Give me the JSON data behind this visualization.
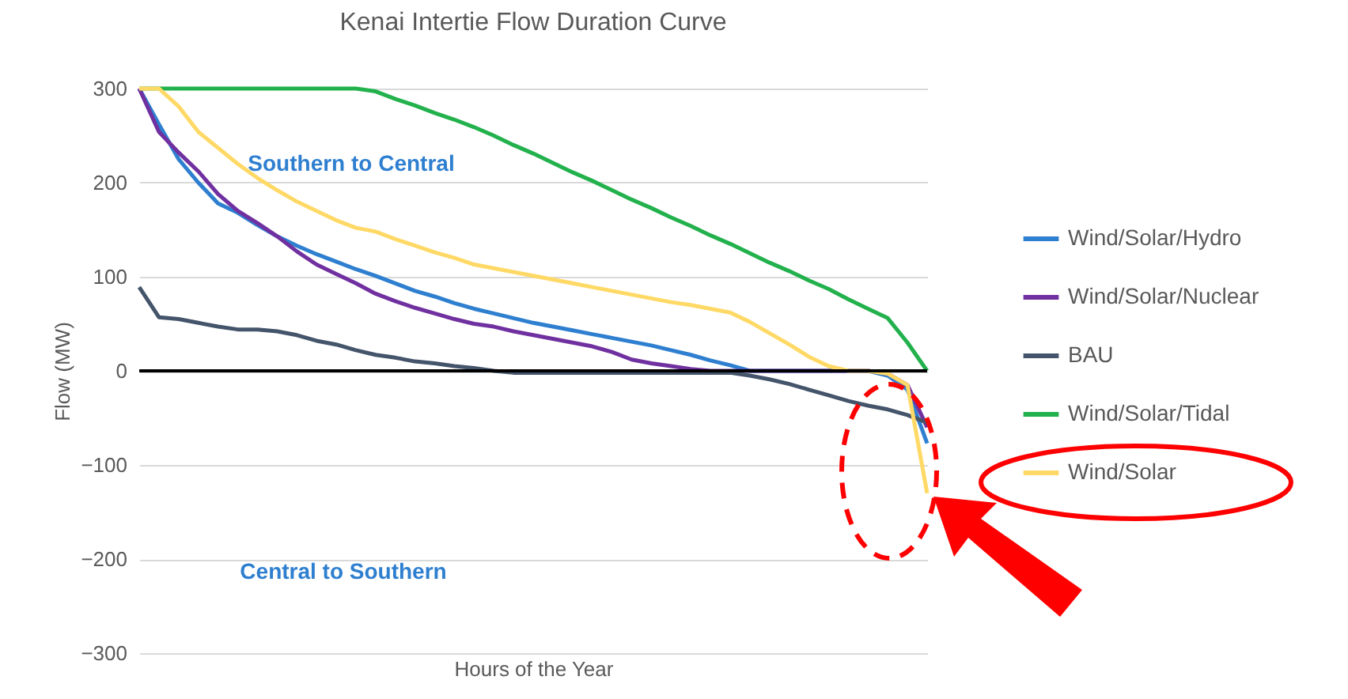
{
  "chart_data": {
    "type": "line",
    "title": "Kenai Intertie Flow Duration Curve",
    "xlabel": "Hours of the Year",
    "ylabel": "Flow (MW)",
    "categories": [
      null,
      null,
      null,
      null,
      null,
      null,
      null,
      null,
      null,
      null,
      null,
      null,
      null,
      null,
      null,
      null,
      null,
      null,
      null,
      null,
      null,
      null,
      null,
      null,
      null,
      null,
      null,
      null,
      null,
      null,
      null,
      null,
      null,
      null,
      null,
      null,
      null,
      null,
      null,
      null,
      null
    ],
    "series": [
      {
        "name": "Wind/Solar/Hydro",
        "color": "#2e7fd0",
        "values": [
          300,
          262,
          225,
          200,
          178,
          168,
          155,
          143,
          133,
          124,
          116,
          108,
          101,
          93,
          85,
          79,
          72,
          66,
          61,
          56,
          51,
          47,
          43,
          39,
          35,
          31,
          27,
          22,
          17,
          11,
          6,
          0,
          0,
          0,
          0,
          0,
          0,
          0,
          -5,
          -20,
          -77
        ]
      },
      {
        "name": "Wind/Solar/Nuclear",
        "color": "#7030a0",
        "values": [
          300,
          254,
          232,
          212,
          188,
          170,
          157,
          143,
          127,
          113,
          103,
          93,
          82,
          74,
          67,
          61,
          55,
          50,
          47,
          42,
          38,
          34,
          30,
          26,
          20,
          12,
          8,
          5,
          2,
          0,
          0,
          0,
          0,
          0,
          0,
          0,
          0,
          0,
          -3,
          -15,
          -60
        ]
      },
      {
        "name": "BAU",
        "color": "#44546a",
        "values": [
          89,
          57,
          55,
          51,
          47,
          44,
          44,
          42,
          38,
          32,
          28,
          22,
          17,
          14,
          10,
          8,
          5,
          3,
          0,
          -2,
          -2,
          -2,
          -2,
          -2,
          -2,
          -2,
          -2,
          -2,
          -2,
          -2,
          -2,
          -5,
          -9,
          -14,
          -20,
          -26,
          -32,
          -37,
          -41,
          -47,
          -55
        ]
      },
      {
        "name": "Wind/Solar/Tidal",
        "color": "#22b14c",
        "values": [
          300,
          300,
          300,
          300,
          300,
          300,
          300,
          300,
          300,
          300,
          300,
          300,
          297,
          289,
          282,
          274,
          267,
          259,
          250,
          240,
          231,
          221,
          211,
          202,
          192,
          182,
          173,
          163,
          154,
          144,
          135,
          125,
          115,
          106,
          96,
          87,
          76,
          66,
          56,
          30,
          0
        ]
      },
      {
        "name": "Wind/Solar",
        "color": "#ffd966",
        "values": [
          300,
          300,
          281,
          254,
          237,
          220,
          205,
          192,
          180,
          170,
          160,
          152,
          148,
          140,
          133,
          126,
          120,
          113,
          109,
          105,
          101,
          97,
          93,
          89,
          85,
          81,
          77,
          73,
          70,
          66,
          62,
          52,
          40,
          28,
          15,
          5,
          0,
          0,
          -3,
          -15,
          -130
        ]
      }
    ],
    "ylim": [
      -300,
      300
    ],
    "yticks": [
      -300,
      -200,
      -100,
      0,
      100,
      200,
      300
    ],
    "grid": "y",
    "legend": "right",
    "tick_labels": "y",
    "ref_lines": [
      {
        "axis": "y",
        "value": 0,
        "color": "#000000"
      }
    ],
    "annotations": [
      "Southern to Central",
      "Central to Southern"
    ]
  }
}
